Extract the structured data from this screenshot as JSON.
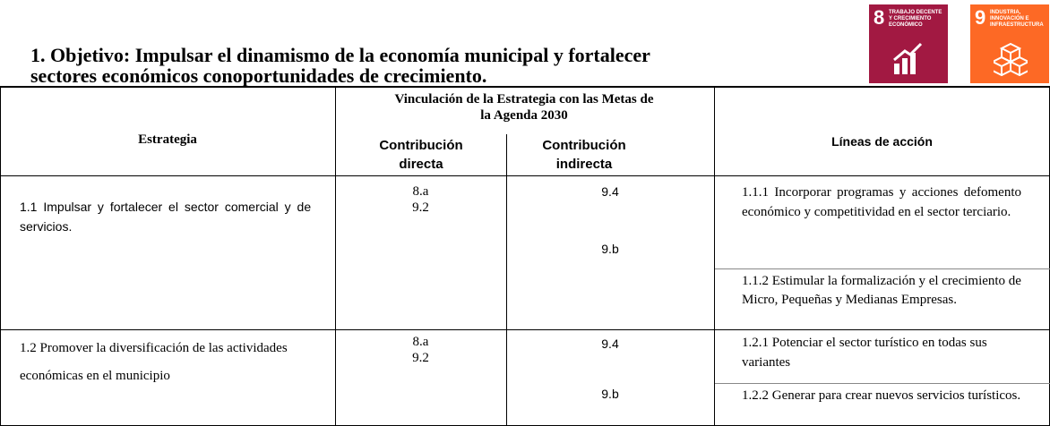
{
  "header": {
    "title_lines": [
      "1. Objetivo: Impulsar el dinamismo de la economía municipal y fortalecer",
      "sectores económicos conoportunidades de crecimiento."
    ],
    "icons": [
      {
        "number": "8",
        "label": "TRABAJO DECENTE Y CRECIMIENTO ECONÓMICO",
        "color": "#a21942"
      },
      {
        "number": "9",
        "label": "INDUSTRIA, INNOVACIÓN E INFRAESTRUCTURA",
        "color": "#fd6925"
      }
    ]
  },
  "table": {
    "headers": {
      "estrategia": "Estrategia",
      "vinculacion": "Vinculación de la Estrategia con las Metas de la Agenda 2030",
      "directa": "Contribución directa",
      "indirecta": "Contribución indirecta",
      "lineas": "Líneas de acción"
    },
    "rows": [
      {
        "estrategia": "1.1 Impulsar y fortalecer el sector comercial y de servicios.",
        "directa": [
          "8.a",
          "9.2"
        ],
        "indirecta": [
          "9.4",
          "9.b"
        ],
        "lineas": [
          "1.1.1 Incorporar programas y acciones defomento económico y competitividad en el sector terciario.",
          "1.1.2 Estimular la formalización y el crecimiento de Micro, Pequeñas y Medianas Empresas."
        ]
      },
      {
        "estrategia": "1.2 Promover la diversificación de las actividades económicas en el municipio",
        "directa": [
          "8.a",
          "9.2"
        ],
        "indirecta": [
          "9.4",
          "9.b"
        ],
        "lineas": [
          "1.2.1 Potenciar el sector turístico en todas sus variantes",
          "1.2.2 Generar para crear nuevos servicios turísticos."
        ]
      }
    ]
  }
}
